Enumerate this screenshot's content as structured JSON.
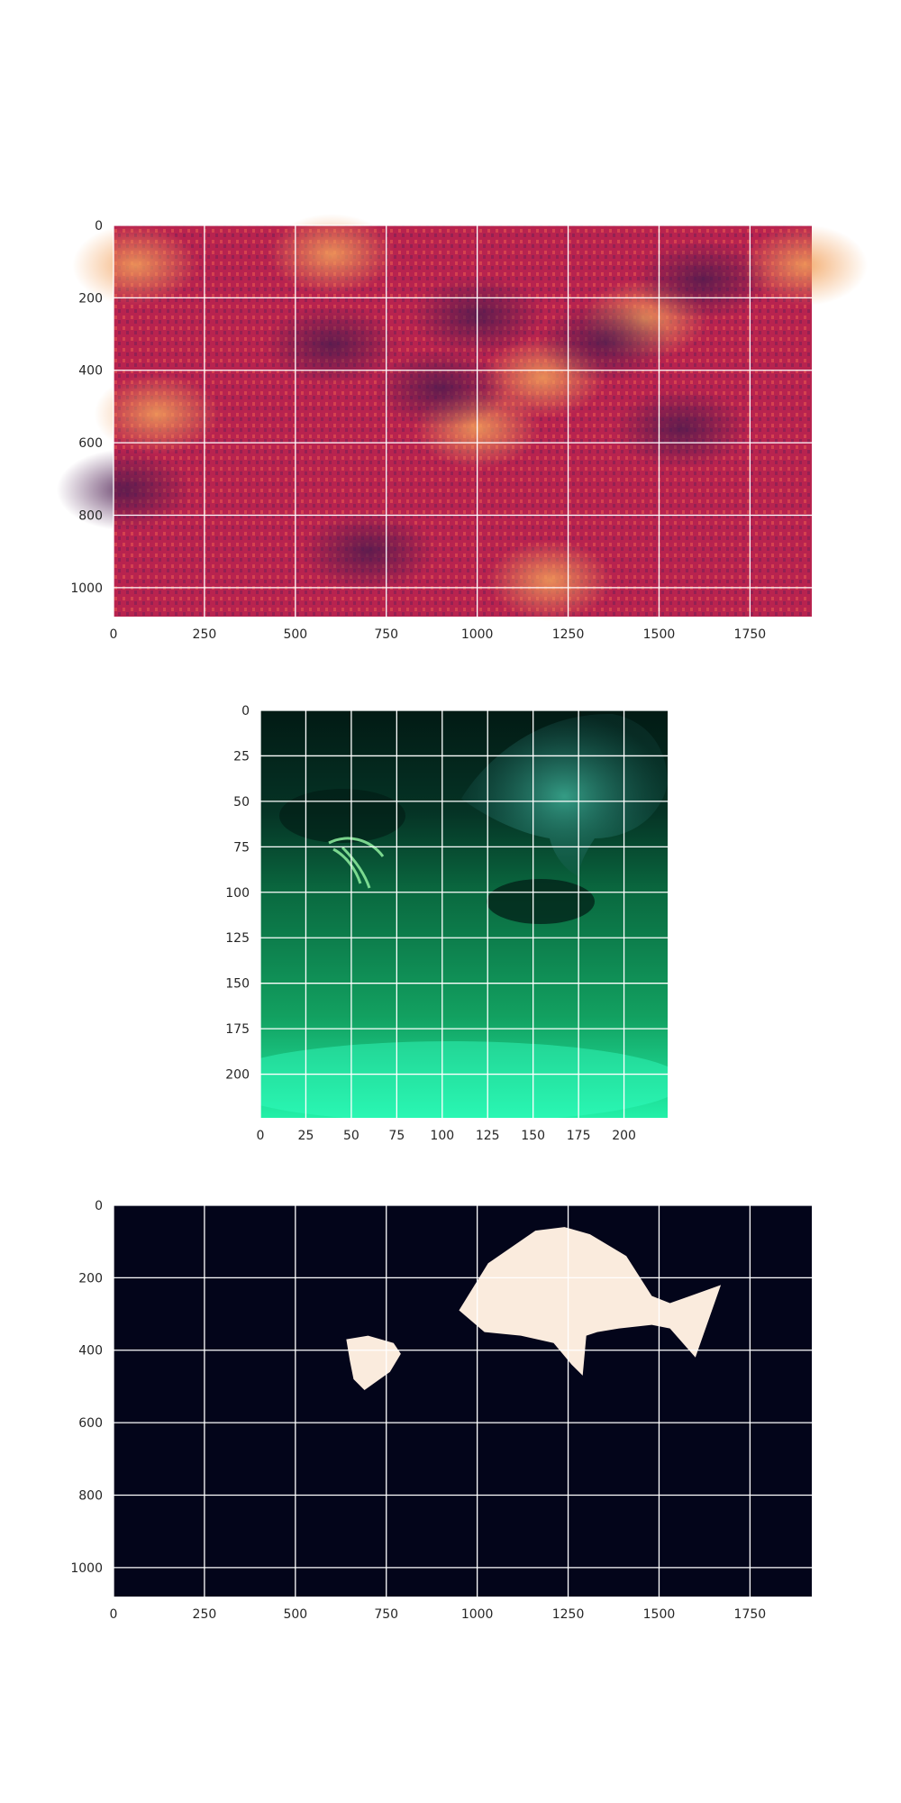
{
  "chart_data": [
    {
      "type": "heatmap",
      "title": "",
      "xlabel": "",
      "ylabel": "",
      "xlim": [
        0,
        1920
      ],
      "ylim": [
        1080,
        0
      ],
      "grid": true,
      "xticks": [
        "0",
        "250",
        "500",
        "750",
        "1000",
        "1250",
        "1500",
        "1750"
      ],
      "xtick_values": [
        0,
        250,
        500,
        750,
        1000,
        1250,
        1500,
        1750
      ],
      "yticks": [
        "0",
        "200",
        "400",
        "600",
        "800",
        "1000"
      ],
      "ytick_values": [
        0,
        200,
        400,
        600,
        800,
        1000
      ],
      "colors": {
        "low": "#4a1a4e",
        "mid": "#b8234f",
        "high": "#f2a05a"
      }
    },
    {
      "type": "heatmap",
      "title": "",
      "xlabel": "",
      "ylabel": "",
      "xlim": [
        0,
        224
      ],
      "ylim": [
        224,
        0
      ],
      "grid": true,
      "xticks": [
        "0",
        "25",
        "50",
        "75",
        "100",
        "125",
        "150",
        "175",
        "200"
      ],
      "xtick_values": [
        0,
        25,
        50,
        75,
        100,
        125,
        150,
        175,
        200
      ],
      "yticks": [
        "0",
        "25",
        "50",
        "75",
        "100",
        "125",
        "150",
        "175",
        "200"
      ],
      "ytick_values": [
        0,
        25,
        50,
        75,
        100,
        125,
        150,
        175,
        200
      ],
      "colors": {
        "dark": "#021a14",
        "mid": "#0a7a4a",
        "bright": "#22f0a8"
      }
    },
    {
      "type": "heatmap",
      "title": "",
      "xlabel": "",
      "ylabel": "",
      "xlim": [
        0,
        1920
      ],
      "ylim": [
        1080,
        0
      ],
      "grid": true,
      "xticks": [
        "0",
        "250",
        "500",
        "750",
        "1000",
        "1250",
        "1500",
        "1750"
      ],
      "xtick_values": [
        0,
        250,
        500,
        750,
        1000,
        1250,
        1500,
        1750
      ],
      "yticks": [
        "0",
        "200",
        "400",
        "600",
        "800",
        "1000"
      ],
      "ytick_values": [
        0,
        200,
        400,
        600,
        800,
        1000
      ],
      "colors": {
        "background": "#03051a",
        "mask": "#faebdd"
      },
      "mask_shapes": [
        {
          "name": "large-fish",
          "points": [
            [
              950,
              290
            ],
            [
              1030,
              160
            ],
            [
              1160,
              70
            ],
            [
              1240,
              60
            ],
            [
              1310,
              80
            ],
            [
              1410,
              140
            ],
            [
              1480,
              250
            ],
            [
              1530,
              270
            ],
            [
              1670,
              220
            ],
            [
              1600,
              420
            ],
            [
              1530,
              340
            ],
            [
              1480,
              330
            ],
            [
              1390,
              340
            ],
            [
              1330,
              350
            ],
            [
              1300,
              360
            ],
            [
              1290,
              470
            ],
            [
              1260,
              440
            ],
            [
              1210,
              380
            ],
            [
              1120,
              360
            ],
            [
              1020,
              350
            ]
          ]
        },
        {
          "name": "small-fish",
          "points": [
            [
              640,
              370
            ],
            [
              700,
              360
            ],
            [
              770,
              380
            ],
            [
              790,
              410
            ],
            [
              760,
              460
            ],
            [
              690,
              510
            ],
            [
              660,
              480
            ],
            [
              650,
              430
            ]
          ]
        }
      ]
    }
  ]
}
